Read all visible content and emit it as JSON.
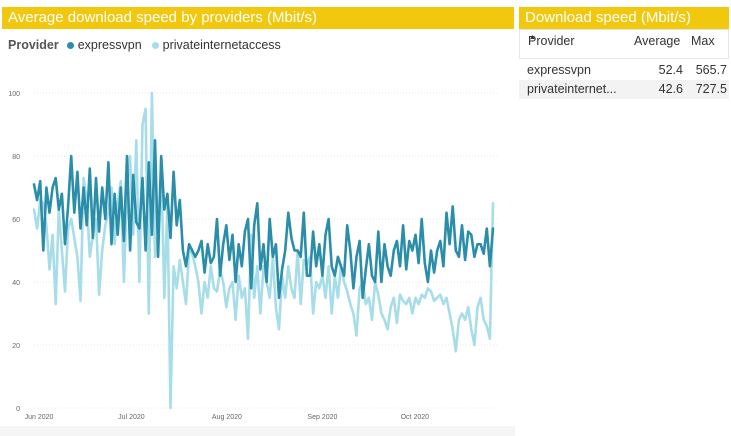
{
  "chart_panel": {
    "title": "Average download speed by providers (Mbit/s)",
    "legend_label": "Provider"
  },
  "table_panel": {
    "title": "Download speed (Mbit/s)",
    "columns": [
      "Provider",
      "Average",
      "Max"
    ],
    "rows": [
      {
        "provider": "expressvpn",
        "average": "52.4",
        "max": "565.7"
      },
      {
        "provider": "privateinternet...",
        "average": "42.6",
        "max": "727.5"
      }
    ]
  },
  "chart_data": {
    "type": "line",
    "title": "Average download speed by providers (Mbit/s)",
    "xlabel": "",
    "ylabel": "",
    "ylim": [
      0,
      100
    ],
    "yticks": [
      0,
      20,
      40,
      60,
      80,
      100
    ],
    "x_start_day": 0,
    "x_end_day": 149,
    "xticks": [
      {
        "label": "Jun 2020",
        "day": 0
      },
      {
        "label": "Jul 2020",
        "day": 30
      },
      {
        "label": "Aug 2020",
        "day": 61
      },
      {
        "label": "Sep 2020",
        "day": 92
      },
      {
        "label": "Oct 2020",
        "day": 122
      }
    ],
    "legend_position": "top-left",
    "grid": true,
    "series": [
      {
        "name": "expressvpn",
        "color": "#2b8ea8",
        "values": [
          71,
          66,
          72,
          50,
          70,
          62,
          70,
          73,
          63,
          68,
          52,
          64,
          80,
          62,
          75,
          57,
          70,
          58,
          76,
          54,
          73,
          56,
          70,
          60,
          78,
          52,
          68,
          55,
          70,
          53,
          80,
          50,
          74,
          59,
          57,
          73,
          50,
          78,
          55,
          85,
          48,
          80,
          63,
          68,
          54,
          75,
          58,
          66,
          50,
          45,
          52,
          50,
          48,
          50,
          53,
          43,
          52,
          46,
          48,
          60,
          42,
          52,
          58,
          47,
          55,
          40,
          52,
          45,
          56,
          60,
          38,
          58,
          65,
          44,
          52,
          40,
          60,
          48,
          52,
          35,
          44,
          50,
          62,
          54,
          50,
          50,
          48,
          62,
          42,
          42,
          56,
          45,
          52,
          42,
          55,
          60,
          45,
          42,
          48,
          45,
          42,
          58,
          50,
          38,
          48,
          53,
          35,
          44,
          52,
          42,
          40,
          56,
          40,
          52,
          45,
          42,
          50,
          53,
          45,
          58,
          44,
          53,
          50,
          55,
          46,
          60,
          46,
          40,
          50,
          43,
          50,
          53,
          45,
          62,
          52,
          64,
          50,
          48,
          58,
          47,
          56,
          55,
          48,
          52,
          52,
          49,
          57,
          45,
          57
        ]
      },
      {
        "name": "privateinternetaccess",
        "color": "#a7dde9",
        "values": [
          63,
          57,
          66,
          65,
          58,
          44,
          55,
          33,
          63,
          50,
          37,
          57,
          60,
          54,
          48,
          34,
          73,
          66,
          48,
          55,
          60,
          36,
          50,
          58,
          62,
          70,
          52,
          65,
          72,
          40,
          70,
          80,
          55,
          85,
          40,
          90,
          95,
          30,
          100,
          48,
          55,
          78,
          35,
          65,
          0,
          45,
          38,
          47,
          40,
          33,
          50,
          49,
          45,
          40,
          30,
          40,
          35,
          45,
          38,
          37,
          44,
          40,
          32,
          38,
          40,
          28,
          42,
          35,
          38,
          22,
          55,
          35,
          45,
          30,
          45,
          40,
          35,
          48,
          32,
          25,
          42,
          35,
          45,
          38,
          35,
          50,
          33,
          47,
          45,
          48,
          30,
          40,
          38,
          42,
          35,
          45,
          30,
          42,
          35,
          45,
          40,
          37,
          33,
          30,
          23,
          38,
          40,
          33,
          35,
          28,
          40,
          36,
          30,
          28,
          25,
          32,
          35,
          27,
          36,
          34,
          33,
          35,
          30,
          35,
          33,
          36,
          35,
          38,
          37,
          34,
          35,
          36,
          33,
          35,
          30,
          25,
          18,
          28,
          30,
          28,
          32,
          25,
          20,
          32,
          35,
          28,
          26,
          22,
          65
        ]
      }
    ]
  }
}
